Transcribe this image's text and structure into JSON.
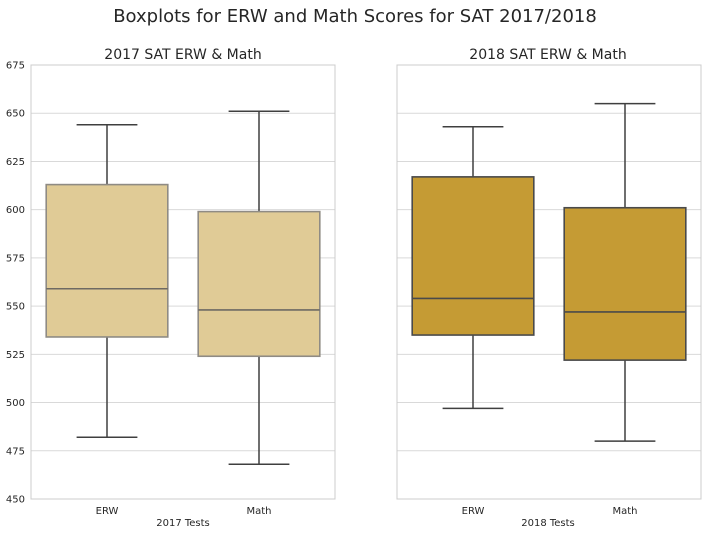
{
  "figure": {
    "suptitle": "Boxplots for ERW and Math Scores for SAT 2017/2018"
  },
  "chart_data": [
    {
      "type": "box",
      "title": "2017 SAT ERW & Math",
      "xlabel": "2017 Tests",
      "ylabel": "",
      "ylim": [
        450,
        675
      ],
      "yticks": [
        450,
        475,
        500,
        525,
        550,
        575,
        600,
        625,
        650,
        675
      ],
      "grid": true,
      "box_color": "#e0cb96",
      "box_alpha_light": true,
      "categories": [
        "ERW",
        "Math"
      ],
      "boxes": [
        {
          "name": "ERW",
          "min": 482,
          "q1": 534,
          "median": 559,
          "q3": 613,
          "max": 644
        },
        {
          "name": "Math",
          "min": 468,
          "q1": 524,
          "median": 548,
          "q3": 599,
          "max": 651
        }
      ]
    },
    {
      "type": "box",
      "title": "2018 SAT ERW & Math",
      "xlabel": "2018 Tests",
      "ylabel": "",
      "ylim": [
        450,
        675
      ],
      "yticks": [
        450,
        475,
        500,
        525,
        550,
        575,
        600,
        625,
        650,
        675
      ],
      "show_ytick_labels": false,
      "grid": true,
      "box_color": "#c59b34",
      "categories": [
        "ERW",
        "Math"
      ],
      "boxes": [
        {
          "name": "ERW",
          "min": 497,
          "q1": 535,
          "median": 554,
          "q3": 617,
          "max": 643
        },
        {
          "name": "Math",
          "min": 480,
          "q1": 522,
          "median": 547,
          "q3": 601,
          "max": 655
        }
      ]
    }
  ]
}
